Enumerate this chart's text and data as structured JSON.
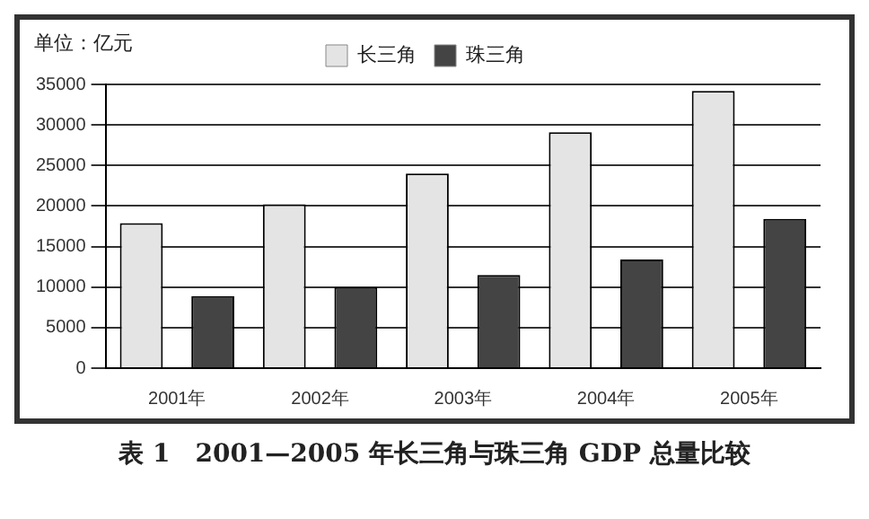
{
  "chart_data": {
    "type": "bar",
    "title": "表 1　2001—2005 年长三角与珠三角 GDP 总量比较",
    "ylabel": "单位：亿元",
    "categories": [
      "2001年",
      "2002年",
      "2003年",
      "2004年",
      "2005年"
    ],
    "series": [
      {
        "name": "长三角",
        "color": "#e4e4e4",
        "values": [
          17900,
          20200,
          24000,
          29100,
          34200
        ]
      },
      {
        "name": "珠三角",
        "color": "#444444",
        "values": [
          8900,
          10000,
          11500,
          13400,
          18400
        ]
      }
    ],
    "ylim": [
      0,
      35000
    ],
    "yticks": [
      0,
      5000,
      10000,
      15000,
      20000,
      25000,
      30000,
      35000
    ],
    "grid": "y",
    "legend": "top"
  }
}
